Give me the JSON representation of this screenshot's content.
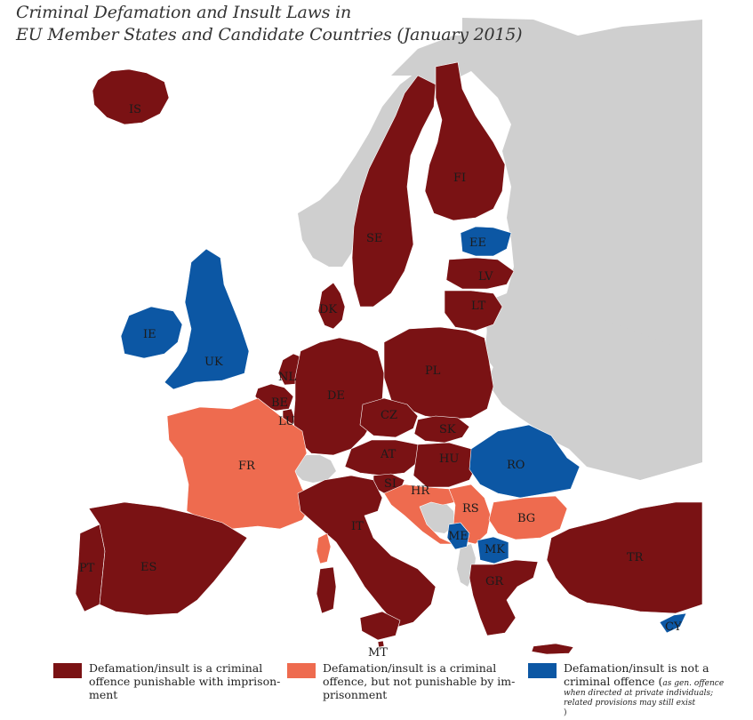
{
  "title": {
    "line1": "Criminal Defamation and Insult Laws in",
    "line2": "EU Member States and Candidate Countries (January 2015)"
  },
  "colors": {
    "imprisonment": "#7a1214",
    "no_imprisonment": "#ee6b4f",
    "not_criminal": "#0c57a4",
    "non_member": "#cfcfcf",
    "sea": "#ffffff"
  },
  "countries": [
    {
      "code": "IS",
      "category": "imprisonment"
    },
    {
      "code": "SE",
      "category": "imprisonment"
    },
    {
      "code": "FI",
      "category": "imprisonment"
    },
    {
      "code": "EE",
      "category": "not_criminal"
    },
    {
      "code": "LV",
      "category": "imprisonment"
    },
    {
      "code": "LT",
      "category": "imprisonment"
    },
    {
      "code": "DK",
      "category": "imprisonment"
    },
    {
      "code": "IE",
      "category": "not_criminal"
    },
    {
      "code": "UK",
      "category": "not_criminal"
    },
    {
      "code": "NL",
      "category": "imprisonment"
    },
    {
      "code": "BE",
      "category": "imprisonment"
    },
    {
      "code": "LU",
      "category": "imprisonment"
    },
    {
      "code": "DE",
      "category": "imprisonment"
    },
    {
      "code": "PL",
      "category": "imprisonment"
    },
    {
      "code": "CZ",
      "category": "imprisonment"
    },
    {
      "code": "SK",
      "category": "imprisonment"
    },
    {
      "code": "FR",
      "category": "no_imprisonment"
    },
    {
      "code": "AT",
      "category": "imprisonment"
    },
    {
      "code": "HU",
      "category": "imprisonment"
    },
    {
      "code": "RO",
      "category": "not_criminal"
    },
    {
      "code": "SI",
      "category": "imprisonment"
    },
    {
      "code": "HR",
      "category": "no_imprisonment"
    },
    {
      "code": "RS",
      "category": "no_imprisonment"
    },
    {
      "code": "BG",
      "category": "no_imprisonment"
    },
    {
      "code": "IT",
      "category": "imprisonment"
    },
    {
      "code": "ME",
      "category": "not_criminal"
    },
    {
      "code": "MK",
      "category": "not_criminal"
    },
    {
      "code": "PT",
      "category": "imprisonment"
    },
    {
      "code": "ES",
      "category": "imprisonment"
    },
    {
      "code": "GR",
      "category": "imprisonment"
    },
    {
      "code": "TR",
      "category": "imprisonment"
    },
    {
      "code": "CY",
      "category": "not_criminal"
    },
    {
      "code": "MT",
      "category": "imprisonment"
    }
  ],
  "legend": {
    "imprisonment": {
      "line1": "Defamation/insult is a criminal",
      "line2": "offence punishable with imprison-",
      "line3": "ment"
    },
    "no_imprisonment": {
      "line1": "Defamation/insult is a criminal",
      "line2": "offence, but not punishable by im-",
      "line3": "prisonment"
    },
    "not_criminal": {
      "line1": "Defamation/insult is not a",
      "line2": "criminal offence (",
      "note1": "as gen. offence",
      "note2": "when directed at private individuals;",
      "note3": "related provisions may still exist",
      "close": ")"
    }
  }
}
